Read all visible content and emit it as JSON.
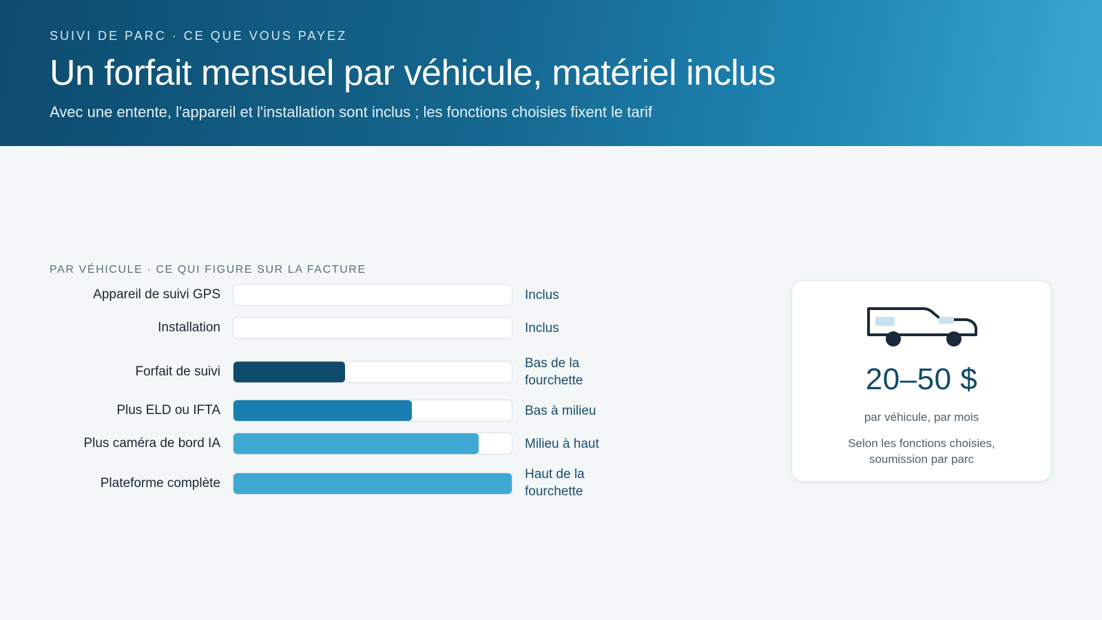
{
  "header": {
    "eyebrow": "SUIVI DE PARC · CE QUE VOUS PAYEZ",
    "title": "Un forfait mensuel par véhicule, matériel inclus",
    "subtitle": "Avec une entente, l'appareil et l'installation sont inclus ; les fonctions choisies fixent le tarif"
  },
  "section_label": "PAR VÉHICULE · CE QUI FIGURE SUR LA FACTURE",
  "rows": [
    {
      "label": "Appareil de suivi GPS",
      "value": "Inclus",
      "level": 0,
      "color": "#0f4a6a"
    },
    {
      "label": "Installation",
      "value": "Inclus",
      "level": 0,
      "color": "#0f4a6a"
    },
    {
      "label": "Forfait de suivi",
      "value": "Bas de la fourchette",
      "level": 0.4,
      "color": "#0f4a6a"
    },
    {
      "label": "Plus ELD ou IFTA",
      "value": "Bas à milieu",
      "level": 0.64,
      "color": "#1a7fb0"
    },
    {
      "label": "Plus caméra de bord IA",
      "value": "Milieu à haut",
      "level": 0.88,
      "color": "#3fa9d3"
    },
    {
      "label": "Plateforme complète",
      "value": "Haut de la fourchette",
      "level": 1.0,
      "color": "#3fa9d3"
    }
  ],
  "card": {
    "icon": "van-icon",
    "price": "20–50 $",
    "per": "par véhicule, par mois",
    "note": "Selon les fonctions choisies, soumission par parc"
  },
  "colors": {
    "header_start": "#0d4b6e",
    "header_end": "#3aa8d4",
    "accent": "#0f4a6a",
    "background": "#f3f7f8"
  }
}
